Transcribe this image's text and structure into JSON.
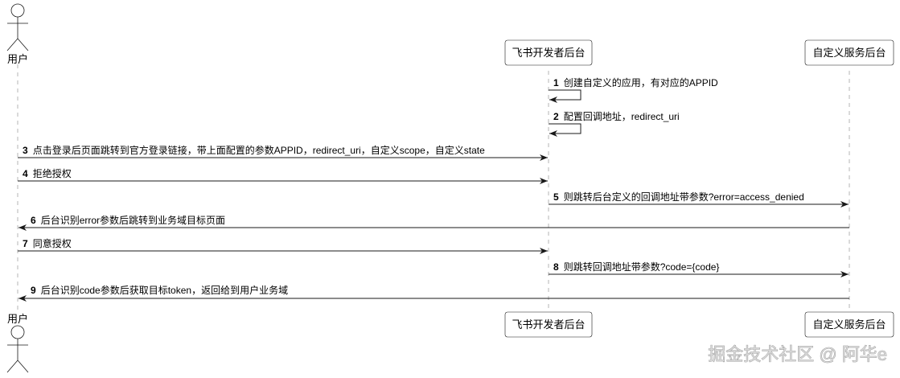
{
  "participants": [
    {
      "id": "user",
      "label": "用户",
      "kind": "actor"
    },
    {
      "id": "feishu",
      "label": "飞书开发者后台",
      "kind": "participant"
    },
    {
      "id": "custom",
      "label": "自定义服务后台",
      "kind": "participant"
    }
  ],
  "messages": [
    {
      "num": "1",
      "from": "feishu",
      "to": "feishu",
      "text": "创建自定义的应用，有对应的APPID"
    },
    {
      "num": "2",
      "from": "feishu",
      "to": "feishu",
      "text": "配置回调地址，redirect_uri"
    },
    {
      "num": "3",
      "from": "user",
      "to": "feishu",
      "text": "点击登录后页面跳转到官方登录链接，带上面配置的参数APPID，redirect_uri，自定义scope，自定义state"
    },
    {
      "num": "4",
      "from": "user",
      "to": "feishu",
      "text": "拒绝授权"
    },
    {
      "num": "5",
      "from": "feishu",
      "to": "custom",
      "text": "则跳转后台定义的回调地址带参数?error=access_denied"
    },
    {
      "num": "6",
      "from": "custom",
      "to": "user",
      "text": "后台识别error参数后跳转到业务域目标页面"
    },
    {
      "num": "7",
      "from": "user",
      "to": "feishu",
      "text": "同意授权"
    },
    {
      "num": "8",
      "from": "feishu",
      "to": "custom",
      "text": "则跳转回调地址带参数?code={code}"
    },
    {
      "num": "9",
      "from": "custom",
      "to": "user",
      "text": "后台识别code参数后获取目标token，返回给到用户业务域"
    }
  ],
  "watermark": "掘金技术社区 @ 阿华e"
}
